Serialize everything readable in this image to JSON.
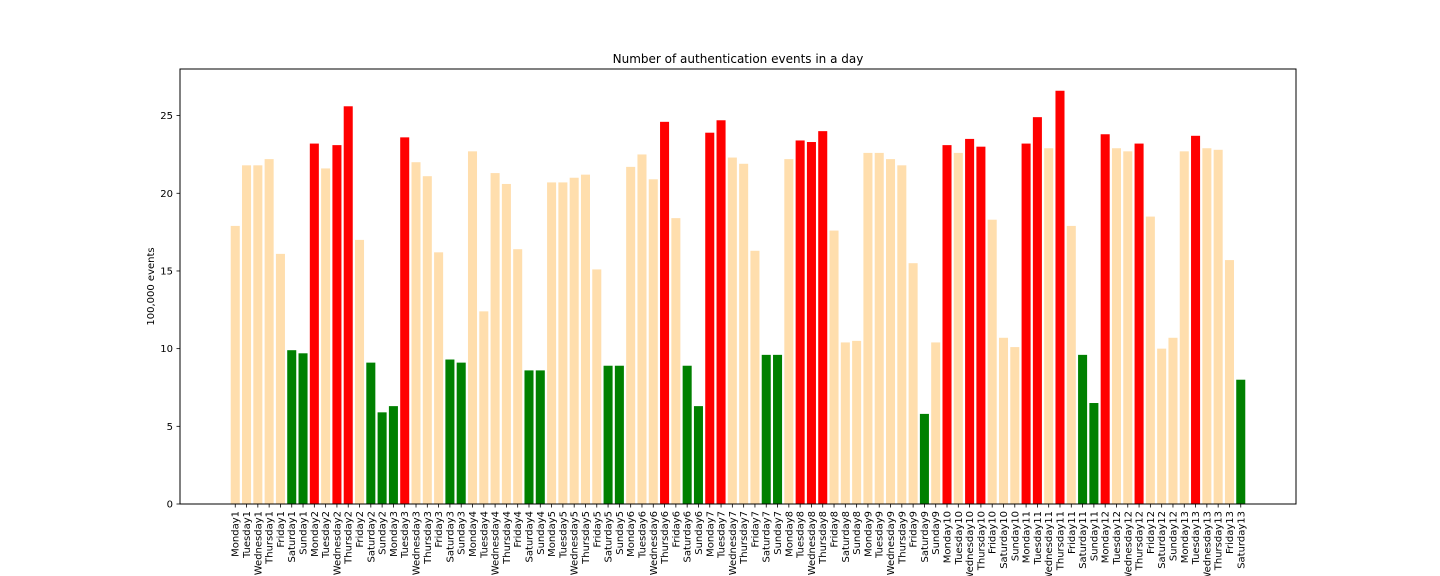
{
  "chart_data": {
    "type": "bar",
    "title": "Number of authentication events in a day",
    "xlabel": "",
    "ylabel": "100,000 events",
    "ylim": [
      0,
      28
    ],
    "yticks": [
      0,
      5,
      10,
      15,
      20,
      25
    ],
    "grid": false,
    "colors": {
      "normal": "#ffdead",
      "high": "#ff0000",
      "low": "#008000"
    },
    "categories": [
      "Monday1",
      "Tuesday1",
      "Wednesday1",
      "Thursday1",
      "Friday1",
      "Saturday1",
      "Sunday1",
      "Monday2",
      "Tuesday2",
      "Wednesday2",
      "Thursday2",
      "Friday2",
      "Saturday2",
      "Sunday2",
      "Monday3",
      "Tuesday3",
      "Wednesday3",
      "Thursday3",
      "Friday3",
      "Saturday3",
      "Sunday3",
      "Monday4",
      "Tuesday4",
      "Wednesday4",
      "Thursday4",
      "Friday4",
      "Saturday4",
      "Sunday4",
      "Monday5",
      "Tuesday5",
      "Wednesday5",
      "Thursday5",
      "Friday5",
      "Saturday5",
      "Sunday5",
      "Monday6",
      "Tuesday6",
      "Wednesday6",
      "Thursday6",
      "Friday6",
      "Saturday6",
      "Sunday6",
      "Monday7",
      "Tuesday7",
      "Wednesday7",
      "Thursday7",
      "Friday7",
      "Saturday7",
      "Sunday7",
      "Monday8",
      "Tuesday8",
      "Wednesday8",
      "Thursday8",
      "Friday8",
      "Saturday8",
      "Sunday8",
      "Monday9",
      "Tuesday9",
      "Wednesday9",
      "Thursday9",
      "Friday9",
      "Saturday9",
      "Sunday9",
      "Monday10",
      "Tuesday10",
      "Wednesday10",
      "Thursday10",
      "Friday10",
      "Saturday10",
      "Sunday10",
      "Monday11",
      "Tuesday11",
      "Wednesday11",
      "Thursday11",
      "Friday11",
      "Saturday11",
      "Sunday11",
      "Monday12",
      "Tuesday12",
      "Wednesday12",
      "Thursday12",
      "Friday12",
      "Saturday12",
      "Sunday12",
      "Monday13",
      "Tuesday13",
      "Wednesday13",
      "Thursday13",
      "Friday13",
      "Saturday13"
    ],
    "values": [
      17.9,
      21.8,
      21.8,
      22.2,
      16.1,
      9.9,
      9.7,
      23.2,
      21.6,
      23.1,
      25.6,
      17.0,
      9.1,
      5.9,
      6.3,
      23.6,
      22.0,
      21.1,
      16.2,
      9.3,
      9.1,
      22.7,
      12.4,
      21.3,
      20.6,
      16.4,
      8.6,
      8.6,
      20.7,
      20.7,
      21.0,
      21.2,
      15.1,
      8.9,
      8.9,
      21.7,
      22.5,
      20.9,
      24.6,
      18.4,
      8.9,
      6.3,
      23.9,
      24.7,
      22.3,
      21.9,
      16.3,
      9.6,
      9.6,
      22.2,
      23.4,
      23.3,
      24.0,
      17.6,
      10.4,
      10.5,
      22.6,
      22.6,
      22.2,
      21.8,
      15.5,
      5.8,
      10.4,
      23.1,
      22.6,
      23.5,
      23.0,
      18.3,
      10.7,
      10.1,
      23.2,
      24.9,
      22.9,
      26.6,
      17.9,
      9.6,
      6.5,
      23.8,
      22.9,
      22.7,
      23.2,
      18.5,
      10.0,
      10.7,
      22.7,
      23.7,
      22.9,
      22.8,
      15.7,
      8.0
    ],
    "bar_colors": [
      "normal",
      "normal",
      "normal",
      "normal",
      "normal",
      "low",
      "low",
      "high",
      "normal",
      "high",
      "high",
      "normal",
      "low",
      "low",
      "low",
      "high",
      "normal",
      "normal",
      "normal",
      "low",
      "low",
      "normal",
      "normal",
      "normal",
      "normal",
      "normal",
      "low",
      "low",
      "normal",
      "normal",
      "normal",
      "normal",
      "normal",
      "low",
      "low",
      "normal",
      "normal",
      "normal",
      "high",
      "normal",
      "low",
      "low",
      "high",
      "high",
      "normal",
      "normal",
      "normal",
      "low",
      "low",
      "normal",
      "high",
      "high",
      "high",
      "normal",
      "normal",
      "normal",
      "normal",
      "normal",
      "normal",
      "normal",
      "normal",
      "low",
      "normal",
      "high",
      "normal",
      "high",
      "high",
      "normal",
      "normal",
      "normal",
      "high",
      "high",
      "normal",
      "high",
      "normal",
      "low",
      "low",
      "high",
      "normal",
      "normal",
      "high",
      "normal",
      "normal",
      "normal",
      "normal",
      "high",
      "normal",
      "normal",
      "normal",
      "low"
    ]
  }
}
